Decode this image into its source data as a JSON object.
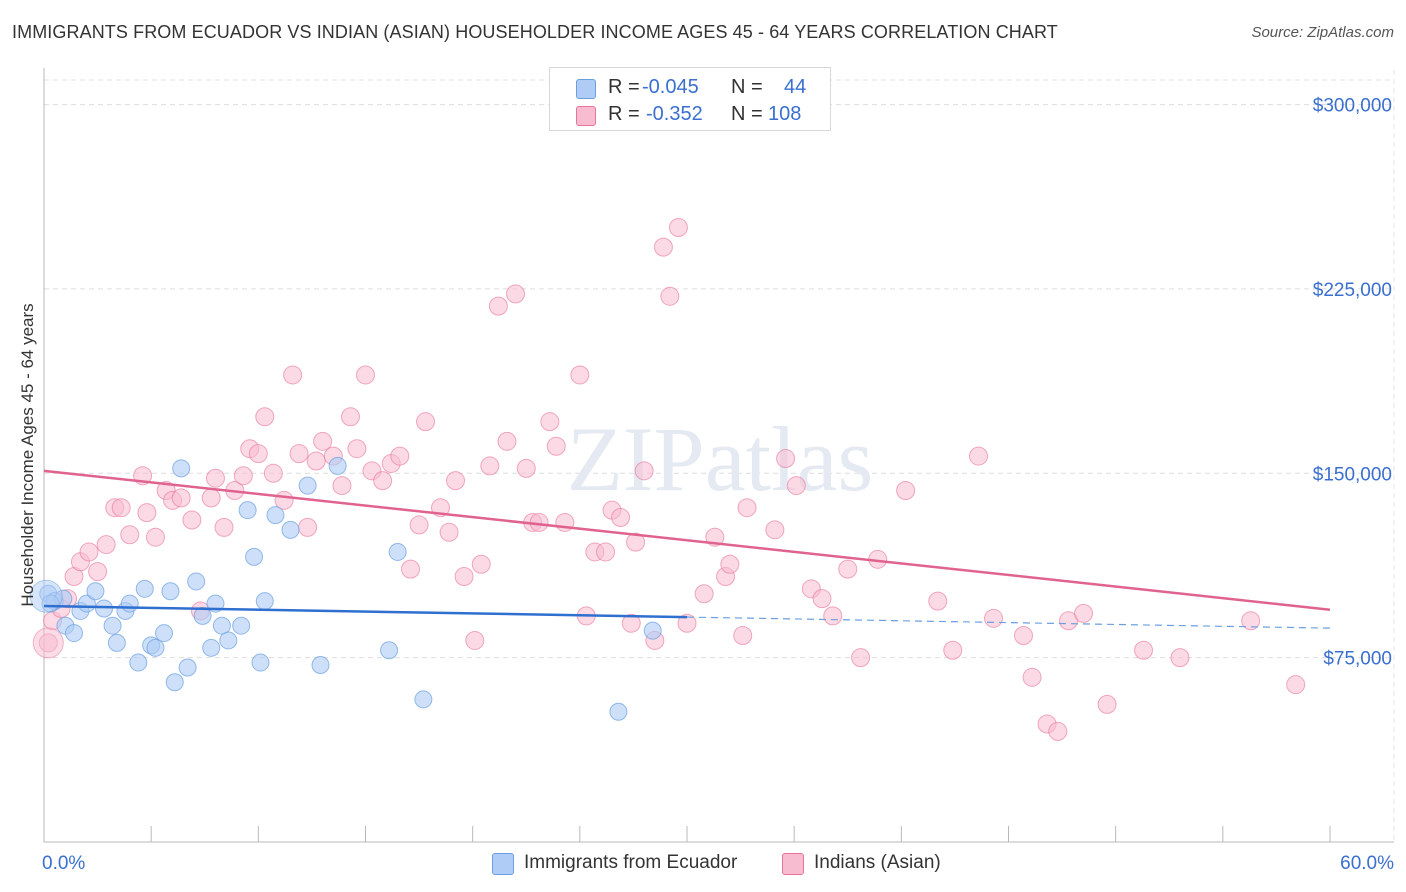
{
  "title": "IMMIGRANTS FROM ECUADOR VS INDIAN (ASIAN) HOUSEHOLDER INCOME AGES 45 - 64 YEARS CORRELATION CHART",
  "source": "Source: ZipAtlas.com",
  "watermark": "ZIPatlas",
  "colors": {
    "blue": "#6b9fe0",
    "blue_fill": "#aeccf5",
    "pink": "#e8739a",
    "pink_fill": "#f7bcd0",
    "axis_label": "#3a6fd0"
  },
  "legend": {
    "rows": [
      {
        "r_label": "R =",
        "r_value": "-0.045",
        "n_label": "N =",
        "n_value": "44"
      },
      {
        "r_label": "R =",
        "r_value": "-0.352",
        "n_label": "N =",
        "n_value": "108"
      }
    ]
  },
  "bottom_legend": [
    "Immigrants from Ecuador",
    "Indians (Asian)"
  ],
  "chart_data": {
    "type": "scatter",
    "xlabel": "",
    "ylabel": "Householder Income Ages 45 - 64 years",
    "xlim": [
      0,
      60
    ],
    "ylim": [
      0,
      310000
    ],
    "x_tick_labels": [
      "0.0%",
      "60.0%"
    ],
    "y_tick_labels": [
      "$75,000",
      "$150,000",
      "$225,000",
      "$300,000"
    ],
    "y_ticks": [
      75000,
      150000,
      225000,
      300000
    ],
    "grid": true,
    "series": [
      {
        "name": "Immigrants from Ecuador",
        "color": "blue",
        "trend": {
          "x0": 0,
          "y0": 96000,
          "x1": 30,
          "y1": 91500,
          "dashed_to": 60,
          "dashed_y": 87000
        },
        "points": [
          [
            0.2,
            101000
          ],
          [
            0.5,
            98000
          ],
          [
            0.9,
            99000
          ],
          [
            1.0,
            88000
          ],
          [
            1.4,
            85000
          ],
          [
            1.7,
            94000
          ],
          [
            2.0,
            97000
          ],
          [
            2.4,
            102000
          ],
          [
            2.8,
            95000
          ],
          [
            3.2,
            88000
          ],
          [
            3.4,
            81000
          ],
          [
            3.8,
            94000
          ],
          [
            4.0,
            97000
          ],
          [
            4.4,
            73000
          ],
          [
            4.7,
            103000
          ],
          [
            5.0,
            80000
          ],
          [
            5.2,
            79000
          ],
          [
            5.6,
            85000
          ],
          [
            5.9,
            102000
          ],
          [
            6.1,
            65000
          ],
          [
            6.4,
            152000
          ],
          [
            6.7,
            71000
          ],
          [
            7.1,
            106000
          ],
          [
            7.4,
            92000
          ],
          [
            7.8,
            79000
          ],
          [
            8.0,
            97000
          ],
          [
            8.3,
            88000
          ],
          [
            8.6,
            82000
          ],
          [
            9.2,
            88000
          ],
          [
            9.5,
            135000
          ],
          [
            9.8,
            116000
          ],
          [
            10.1,
            73000
          ],
          [
            10.3,
            98000
          ],
          [
            10.8,
            133000
          ],
          [
            11.5,
            127000
          ],
          [
            12.3,
            145000
          ],
          [
            12.9,
            72000
          ],
          [
            13.7,
            153000
          ],
          [
            16.1,
            78000
          ],
          [
            16.5,
            118000
          ],
          [
            17.7,
            58000
          ],
          [
            26.8,
            53000
          ],
          [
            28.4,
            86000
          ],
          [
            0.3,
            97000
          ]
        ]
      },
      {
        "name": "Indians (Asian)",
        "color": "pink",
        "trend": {
          "x0": 0,
          "y0": 151000,
          "x1": 60,
          "y1": 94500
        },
        "points": [
          [
            0.2,
            81000
          ],
          [
            0.4,
            90000
          ],
          [
            0.8,
            95000
          ],
          [
            1.1,
            99000
          ],
          [
            1.4,
            108000
          ],
          [
            1.7,
            114000
          ],
          [
            2.1,
            118000
          ],
          [
            2.5,
            110000
          ],
          [
            2.9,
            121000
          ],
          [
            3.3,
            136000
          ],
          [
            3.6,
            136000
          ],
          [
            4.0,
            125000
          ],
          [
            4.6,
            149000
          ],
          [
            4.8,
            134000
          ],
          [
            5.2,
            124000
          ],
          [
            5.7,
            143000
          ],
          [
            6.0,
            139000
          ],
          [
            6.4,
            140000
          ],
          [
            6.9,
            131000
          ],
          [
            7.3,
            94000
          ],
          [
            7.8,
            140000
          ],
          [
            8.0,
            148000
          ],
          [
            8.4,
            128000
          ],
          [
            8.9,
            143000
          ],
          [
            9.3,
            149000
          ],
          [
            9.6,
            160000
          ],
          [
            10.0,
            158000
          ],
          [
            10.3,
            173000
          ],
          [
            10.7,
            150000
          ],
          [
            11.2,
            139000
          ],
          [
            11.6,
            190000
          ],
          [
            11.9,
            158000
          ],
          [
            12.3,
            128000
          ],
          [
            12.7,
            155000
          ],
          [
            13.0,
            163000
          ],
          [
            13.5,
            157000
          ],
          [
            13.9,
            145000
          ],
          [
            14.3,
            173000
          ],
          [
            14.6,
            160000
          ],
          [
            15.0,
            190000
          ],
          [
            15.3,
            151000
          ],
          [
            15.8,
            147000
          ],
          [
            16.2,
            154000
          ],
          [
            16.6,
            157000
          ],
          [
            17.1,
            111000
          ],
          [
            17.5,
            129000
          ],
          [
            17.8,
            171000
          ],
          [
            18.5,
            136000
          ],
          [
            18.9,
            126000
          ],
          [
            19.2,
            147000
          ],
          [
            19.6,
            108000
          ],
          [
            20.1,
            82000
          ],
          [
            20.4,
            113000
          ],
          [
            20.8,
            153000
          ],
          [
            21.2,
            218000
          ],
          [
            21.6,
            163000
          ],
          [
            22.0,
            223000
          ],
          [
            22.5,
            152000
          ],
          [
            22.8,
            130000
          ],
          [
            23.1,
            130000
          ],
          [
            23.6,
            171000
          ],
          [
            23.9,
            161000
          ],
          [
            24.3,
            130000
          ],
          [
            25.0,
            190000
          ],
          [
            25.3,
            92000
          ],
          [
            25.7,
            118000
          ],
          [
            26.2,
            118000
          ],
          [
            26.5,
            135000
          ],
          [
            26.9,
            132000
          ],
          [
            27.4,
            89000
          ],
          [
            27.6,
            122000
          ],
          [
            28.0,
            151000
          ],
          [
            28.5,
            82000
          ],
          [
            28.9,
            242000
          ],
          [
            29.2,
            222000
          ],
          [
            29.6,
            250000
          ],
          [
            30.0,
            89000
          ],
          [
            30.8,
            101000
          ],
          [
            31.3,
            124000
          ],
          [
            31.8,
            108000
          ],
          [
            32.0,
            113000
          ],
          [
            32.6,
            84000
          ],
          [
            32.8,
            136000
          ],
          [
            34.1,
            127000
          ],
          [
            34.6,
            156000
          ],
          [
            35.1,
            145000
          ],
          [
            35.8,
            103000
          ],
          [
            36.3,
            99000
          ],
          [
            36.8,
            92000
          ],
          [
            37.5,
            111000
          ],
          [
            38.1,
            75000
          ],
          [
            38.9,
            115000
          ],
          [
            40.2,
            143000
          ],
          [
            41.7,
            98000
          ],
          [
            42.4,
            78000
          ],
          [
            43.6,
            157000
          ],
          [
            44.3,
            91000
          ],
          [
            45.7,
            84000
          ],
          [
            46.1,
            67000
          ],
          [
            46.8,
            48000
          ],
          [
            47.3,
            45000
          ],
          [
            47.8,
            90000
          ],
          [
            48.5,
            93000
          ],
          [
            49.6,
            56000
          ],
          [
            51.3,
            78000
          ],
          [
            53.0,
            75000
          ],
          [
            56.3,
            90000
          ],
          [
            58.4,
            64000
          ]
        ]
      }
    ]
  }
}
